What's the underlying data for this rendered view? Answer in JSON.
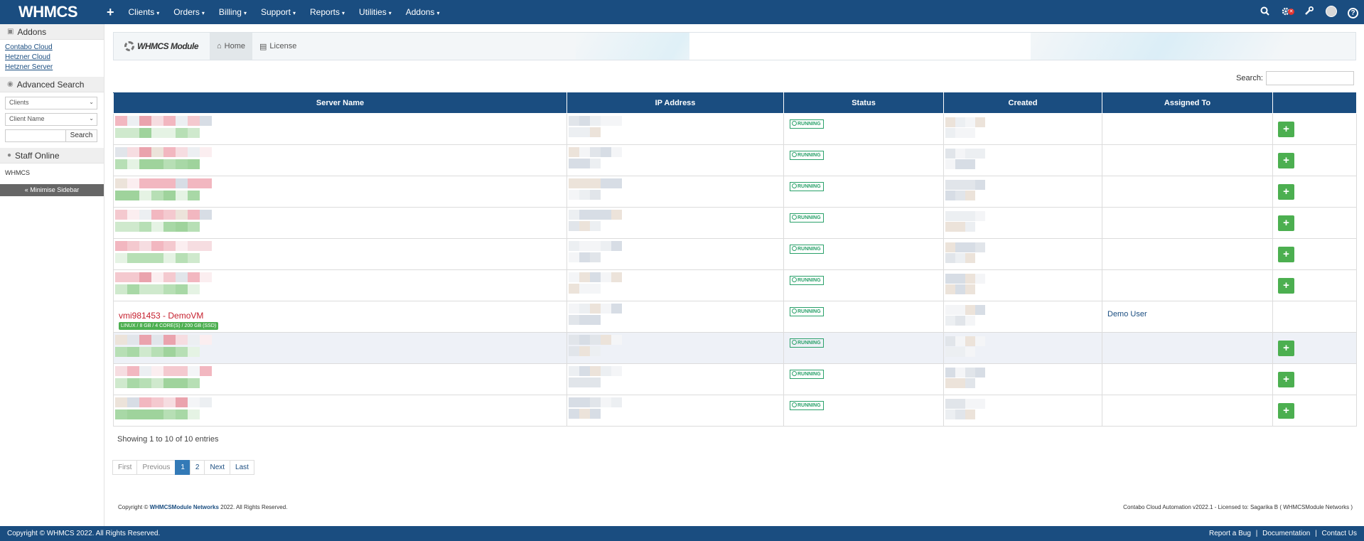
{
  "nav": {
    "brand": "WHMCS",
    "plus": "+",
    "menus": [
      "Clients",
      "Orders",
      "Billing",
      "Support",
      "Reports",
      "Utilities",
      "Addons"
    ],
    "icons": [
      "search-icon",
      "notifications-icon",
      "wrench-icon",
      "avatar",
      "help-icon"
    ],
    "help": "?"
  },
  "sidebar": {
    "addons_title": "Addons",
    "addon_links": [
      "Contabo Cloud",
      "Hetzner Cloud",
      "Hetzner Server"
    ],
    "advanced_search_title": "Advanced Search",
    "select_type": "Clients",
    "select_field": "Client Name",
    "search_button": "Search",
    "staff_title": "Staff Online",
    "staff": "WHMCS",
    "minimise": "« Minimise Sidebar"
  },
  "module": {
    "logo": "WHMCS Module",
    "tabs": [
      {
        "label": "Home",
        "icon": "home-icon",
        "active": true
      },
      {
        "label": "License",
        "icon": "license-icon",
        "active": false
      }
    ]
  },
  "table": {
    "search_label": "Search:",
    "columns": [
      "Server Name",
      "IP Address",
      "Status",
      "Created",
      "Assigned To",
      ""
    ],
    "status": "RUNNING",
    "add_label": "+",
    "demo_row": {
      "name": "vmi981453 - DemoVM",
      "spec": "LINUX / 8 GB / 4 CORE(S) / 200 GB (SSD)",
      "assigned": "Demo User"
    },
    "info": "Showing 1 to 10 of 10 entries",
    "pagination": [
      "First",
      "Previous",
      "1",
      "2",
      "Next",
      "Last"
    ]
  },
  "copyright_module": {
    "prefix": "Copyright © ",
    "company": "WHMCSModule Networks",
    "suffix": " 2022. All Rights Reserved."
  },
  "license_info": "Contabo Cloud Automation v2022.1 - Licensed to: Sagarika B ( WHMCSModule Networks )",
  "footer": {
    "copyright": "Copyright © WHMCS 2022. All Rights Reserved.",
    "links": [
      "Report a Bug",
      "|",
      "Documentation",
      "|",
      "Contact Us"
    ]
  },
  "colors": {
    "brand": "#1a4d80",
    "success": "#4caf50",
    "running": "#2aa16a",
    "demo_name": "#c51f2d"
  }
}
